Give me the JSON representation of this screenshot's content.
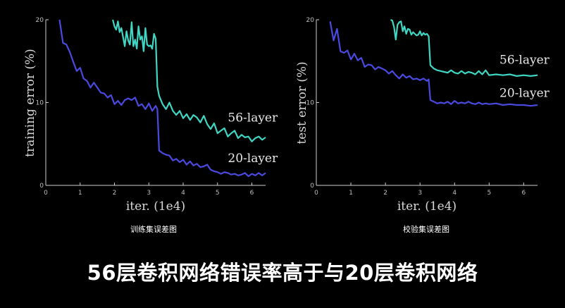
{
  "headline": "56层卷积网络错误率高于与20层卷积网络",
  "colors": {
    "background": "#000000",
    "layer56": "#3fd6c4",
    "layer20": "#4b4ae0",
    "axis": "#cfcfcf"
  },
  "chart_data": [
    {
      "type": "line",
      "xlabel": "iter. (1e4)",
      "ylabel": "training error (%)",
      "caption": "训练集误差图",
      "xlim": [
        0,
        6.4
      ],
      "ylim": [
        0,
        20
      ],
      "xticks": [
        0,
        1,
        2,
        3,
        4,
        5,
        6
      ],
      "yticks": [
        0,
        10,
        20
      ],
      "series": [
        {
          "name": "56-layer",
          "color": "#3fd6c4",
          "x": [
            1.95,
            2.0,
            2.05,
            2.1,
            2.15,
            2.2,
            2.3,
            2.35,
            2.4,
            2.45,
            2.5,
            2.55,
            2.6,
            2.65,
            2.7,
            2.75,
            2.8,
            2.85,
            2.9,
            2.95,
            3.0,
            3.05,
            3.1,
            3.15,
            3.2,
            3.25,
            3.3,
            3.4,
            3.5,
            3.6,
            3.7,
            3.8,
            3.9,
            4.0,
            4.1,
            4.2,
            4.3,
            4.4,
            4.5,
            4.6,
            4.7,
            4.8,
            4.9,
            5.0,
            5.1,
            5.2,
            5.3,
            5.4,
            5.5,
            5.6,
            5.7,
            5.8,
            5.9,
            6.0,
            6.1,
            6.2,
            6.3,
            6.4
          ],
          "y": [
            20,
            19.2,
            18.8,
            19.8,
            18.5,
            19.0,
            16.8,
            18.6,
            17.5,
            17.0,
            19.7,
            16.8,
            17.6,
            16.5,
            19.2,
            17.6,
            18.0,
            16.2,
            19.0,
            17.0,
            16.8,
            16.9,
            16.5,
            18.3,
            17.7,
            11.9,
            10.8,
            9.8,
            9.2,
            10.0,
            9.0,
            8.5,
            9.0,
            8.1,
            8.6,
            7.9,
            8.5,
            8.2,
            7.6,
            8.4,
            7.4,
            6.8,
            7.5,
            6.3,
            6.6,
            6.9,
            5.9,
            6.3,
            6.6,
            5.7,
            6.1,
            5.8,
            5.9,
            5.3,
            5.7,
            5.9,
            5.5,
            5.8
          ]
        },
        {
          "name": "20-layer",
          "color": "#4b4ae0",
          "x": [
            0.4,
            0.5,
            0.6,
            0.7,
            0.8,
            0.9,
            1.0,
            1.1,
            1.2,
            1.3,
            1.4,
            1.5,
            1.6,
            1.7,
            1.8,
            1.9,
            2.0,
            2.1,
            2.2,
            2.3,
            2.4,
            2.5,
            2.6,
            2.7,
            2.8,
            2.9,
            3.0,
            3.1,
            3.2,
            3.25,
            3.3,
            3.4,
            3.5,
            3.6,
            3.7,
            3.8,
            3.9,
            4.0,
            4.1,
            4.2,
            4.3,
            4.4,
            4.5,
            4.6,
            4.7,
            4.8,
            4.9,
            5.0,
            5.1,
            5.2,
            5.3,
            5.4,
            5.5,
            5.6,
            5.7,
            5.8,
            5.9,
            6.0,
            6.1,
            6.2,
            6.3,
            6.4
          ],
          "y": [
            20,
            17.2,
            17.0,
            16.1,
            14.9,
            13.8,
            14.2,
            12.9,
            12.6,
            11.8,
            12.4,
            11.8,
            11.2,
            11.1,
            10.6,
            10.9,
            9.8,
            10.2,
            9.7,
            10.3,
            10.5,
            10.3,
            10.6,
            9.6,
            9.8,
            9.2,
            9.9,
            9.0,
            9.6,
            9.2,
            4.2,
            3.9,
            3.7,
            3.6,
            3.0,
            3.2,
            2.8,
            3.1,
            2.5,
            2.9,
            2.4,
            2.6,
            2.2,
            2.3,
            2.5,
            1.9,
            1.7,
            1.6,
            1.4,
            1.6,
            1.5,
            1.3,
            1.4,
            1.2,
            1.3,
            1.5,
            1.1,
            1.4,
            1.2,
            1.5,
            1.2,
            1.5
          ]
        }
      ]
    },
    {
      "type": "line",
      "xlabel": "iter. (1e4)",
      "ylabel": "test error (%)",
      "caption": "校验集误差图",
      "xlim": [
        0,
        6.4
      ],
      "ylim": [
        0,
        20
      ],
      "xticks": [
        0,
        1,
        2,
        3,
        4,
        5,
        6
      ],
      "yticks": [
        0,
        10,
        20
      ],
      "series": [
        {
          "name": "56-layer",
          "color": "#3fd6c4",
          "x": [
            2.15,
            2.2,
            2.25,
            2.3,
            2.35,
            2.4,
            2.45,
            2.5,
            2.55,
            2.6,
            2.65,
            2.7,
            2.75,
            2.8,
            2.85,
            2.9,
            2.95,
            3.0,
            3.05,
            3.1,
            3.15,
            3.2,
            3.25,
            3.3,
            3.4,
            3.5,
            3.6,
            3.7,
            3.8,
            3.9,
            4.0,
            4.1,
            4.2,
            4.3,
            4.4,
            4.5,
            4.6,
            4.7,
            4.8,
            4.9,
            5.0,
            5.2,
            5.4,
            5.6,
            5.8,
            6.0,
            6.2,
            6.4
          ],
          "y": [
            20,
            19.9,
            19.1,
            17.6,
            19.4,
            19.7,
            19.8,
            18.6,
            19.2,
            18.3,
            18.9,
            18.8,
            18.2,
            18.5,
            18.3,
            18.1,
            18.2,
            18.6,
            18.1,
            18.4,
            18.2,
            18.3,
            18.0,
            14.5,
            14.1,
            13.9,
            13.8,
            13.7,
            13.6,
            13.9,
            13.6,
            13.5,
            13.8,
            13.5,
            13.7,
            13.6,
            13.4,
            13.8,
            13.4,
            13.9,
            13.3,
            13.4,
            13.3,
            13.4,
            13.2,
            13.3,
            13.2,
            13.3
          ]
        },
        {
          "name": "20-layer",
          "color": "#4b4ae0",
          "x": [
            0.4,
            0.5,
            0.6,
            0.7,
            0.8,
            0.9,
            1.0,
            1.1,
            1.2,
            1.3,
            1.4,
            1.5,
            1.6,
            1.7,
            1.8,
            1.9,
            2.0,
            2.1,
            2.2,
            2.3,
            2.4,
            2.5,
            2.6,
            2.7,
            2.8,
            2.9,
            3.0,
            3.1,
            3.2,
            3.25,
            3.3,
            3.4,
            3.5,
            3.6,
            3.7,
            3.8,
            3.9,
            4.0,
            4.1,
            4.2,
            4.3,
            4.4,
            4.5,
            4.6,
            4.7,
            4.8,
            4.9,
            5.0,
            5.2,
            5.4,
            5.6,
            5.8,
            6.0,
            6.2,
            6.4
          ],
          "y": [
            19.8,
            17.5,
            18.9,
            16.2,
            16.0,
            16.3,
            15.2,
            15.9,
            15.1,
            15.4,
            14.3,
            14.6,
            14.5,
            14.0,
            14.3,
            14.1,
            13.9,
            13.5,
            13.8,
            13.3,
            12.9,
            13.4,
            13.0,
            13.2,
            12.8,
            12.9,
            12.7,
            12.9,
            12.6,
            12.8,
            10.3,
            10.1,
            9.9,
            10.0,
            9.9,
            10.1,
            9.8,
            10.2,
            9.9,
            10.0,
            9.9,
            10.1,
            9.9,
            9.8,
            10.0,
            9.8,
            9.9,
            9.8,
            9.9,
            9.7,
            9.8,
            9.7,
            9.7,
            9.6,
            9.7
          ]
        }
      ]
    }
  ]
}
